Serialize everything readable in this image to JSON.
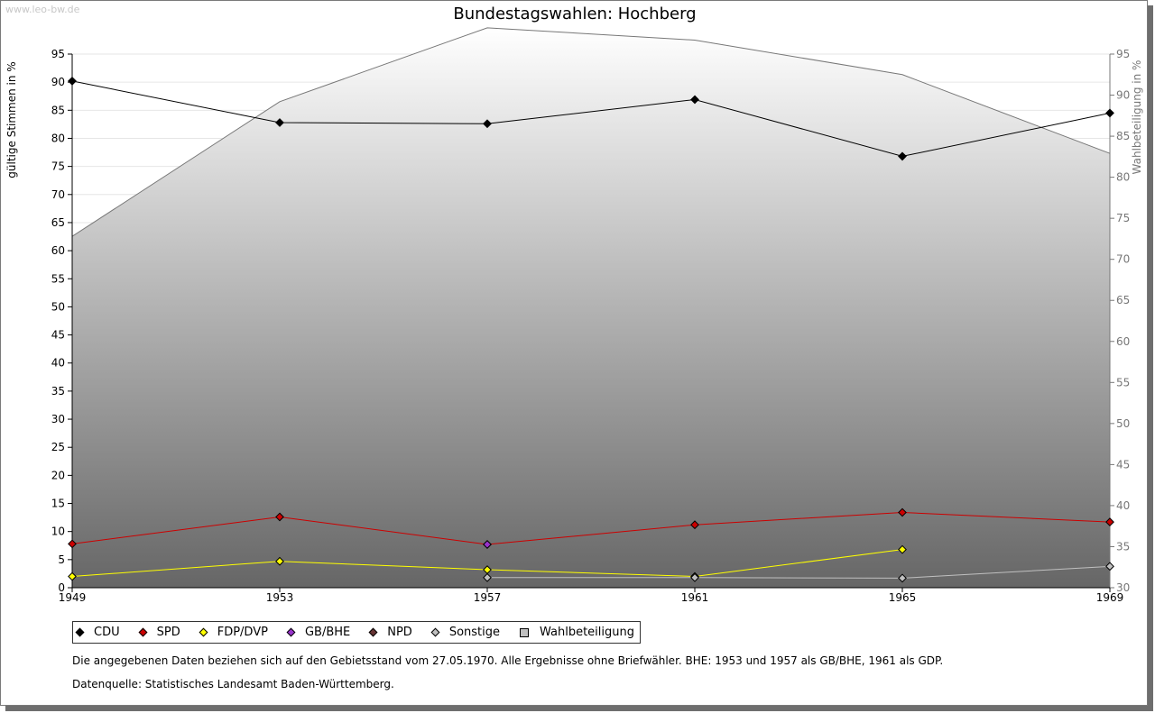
{
  "watermark": "www.leo-bw.de",
  "chart_data": {
    "type": "line",
    "title": "Bundestagswahlen: Hochberg",
    "ylabel": "gültige Stimmen in %",
    "y2label": "Wahlbeteiligung in %",
    "ylim": [
      0,
      95
    ],
    "y2lim": [
      30,
      95
    ],
    "yticks": [
      "0",
      "5",
      "10",
      "15",
      "20",
      "25",
      "30",
      "35",
      "40",
      "45",
      "50",
      "55",
      "60",
      "65",
      "70",
      "75",
      "80",
      "85",
      "90",
      "95"
    ],
    "y2ticks": [
      "30",
      "35",
      "40",
      "45",
      "50",
      "55",
      "60",
      "65",
      "70",
      "75",
      "80",
      "85",
      "90",
      "95"
    ],
    "categories": [
      "1949",
      "1953",
      "1957",
      "1961",
      "1965",
      "1969"
    ],
    "series": [
      {
        "name": "CDU",
        "color": "#000000",
        "values": [
          90.2,
          82.8,
          82.6,
          86.9,
          76.8,
          84.5
        ]
      },
      {
        "name": "SPD",
        "color": "#cc0000",
        "values": [
          7.8,
          12.6,
          7.7,
          11.2,
          13.4,
          11.7
        ]
      },
      {
        "name": "FDP/DVP",
        "color": "#ffff00",
        "values": [
          2.0,
          4.7,
          3.2,
          2.0,
          6.8,
          null
        ]
      },
      {
        "name": "GB/BHE",
        "color": "#9933cc",
        "values": [
          null,
          null,
          7.7,
          null,
          null,
          null
        ]
      },
      {
        "name": "NPD",
        "color": "#663333",
        "values": [
          null,
          null,
          null,
          null,
          null,
          null
        ]
      },
      {
        "name": "Sonstige",
        "color": "#c0c0c0",
        "values": [
          null,
          null,
          1.8,
          1.8,
          1.7,
          3.8
        ]
      }
    ],
    "turnout": {
      "name": "Wahlbeteiligung",
      "values": [
        72.8,
        89.2,
        98.2,
        96.7,
        92.5,
        82.9
      ]
    }
  },
  "legend": [
    {
      "label": "CDU",
      "color": "#000000",
      "shape": "diamond"
    },
    {
      "label": "SPD",
      "color": "#cc0000",
      "shape": "diamond"
    },
    {
      "label": "FDP/DVP",
      "color": "#ffff00",
      "shape": "diamond"
    },
    {
      "label": "GB/BHE",
      "color": "#9933cc",
      "shape": "diamond"
    },
    {
      "label": "NPD",
      "color": "#663333",
      "shape": "diamond"
    },
    {
      "label": "Sonstige",
      "color": "#c0c0c0",
      "shape": "diamond"
    },
    {
      "label": "Wahlbeteiligung",
      "color": "#c0c0c0",
      "shape": "square"
    }
  ],
  "notes": {
    "line1": "Die angegebenen Daten beziehen sich auf den Gebietsstand vom 27.05.1970. Alle Ergebnisse ohne Briefwähler. BHE: 1953 und 1957 als GB/BHE, 1961 als GDP.",
    "line2": "Datenquelle: Statistisches Landesamt Baden-Württemberg."
  }
}
